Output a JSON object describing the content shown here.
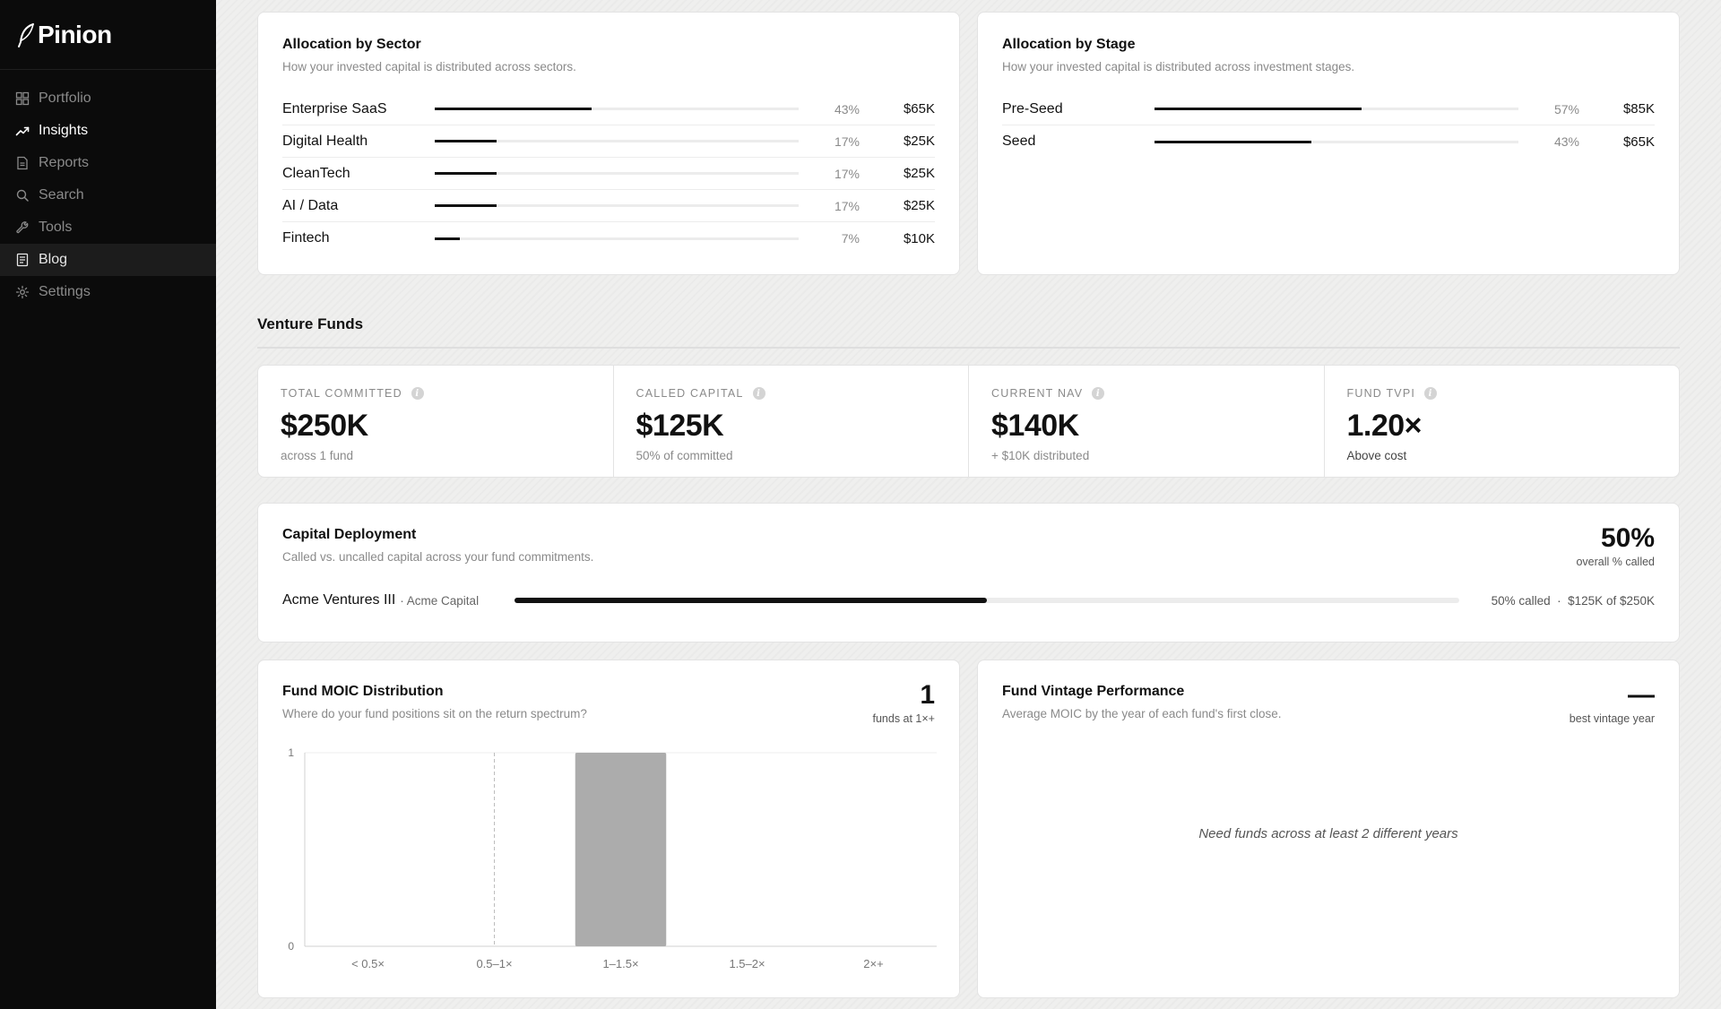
{
  "brand": {
    "name": "Pinion"
  },
  "nav": [
    {
      "label": "Portfolio",
      "icon": "grid-icon",
      "state": "normal"
    },
    {
      "label": "Insights",
      "icon": "trend-icon",
      "state": "active"
    },
    {
      "label": "Reports",
      "icon": "document-icon",
      "state": "normal"
    },
    {
      "label": "Search",
      "icon": "search-icon",
      "state": "normal"
    },
    {
      "label": "Tools",
      "icon": "wrench-icon",
      "state": "normal"
    },
    {
      "label": "Blog",
      "icon": "article-icon",
      "state": "hover"
    },
    {
      "label": "Settings",
      "icon": "gear-icon",
      "state": "normal"
    }
  ],
  "sector": {
    "title": "Allocation by Sector",
    "subtitle": "How your invested capital is distributed across sectors.",
    "rows": [
      {
        "label": "Enterprise SaaS",
        "pct": "43%",
        "value": 43,
        "amount": "$65K"
      },
      {
        "label": "Digital Health",
        "pct": "17%",
        "value": 17,
        "amount": "$25K"
      },
      {
        "label": "CleanTech",
        "pct": "17%",
        "value": 17,
        "amount": "$25K"
      },
      {
        "label": "AI / Data",
        "pct": "17%",
        "value": 17,
        "amount": "$25K"
      },
      {
        "label": "Fintech",
        "pct": "7%",
        "value": 7,
        "amount": "$10K"
      }
    ]
  },
  "stage": {
    "title": "Allocation by Stage",
    "subtitle": "How your invested capital is distributed across investment stages.",
    "rows": [
      {
        "label": "Pre-Seed",
        "pct": "57%",
        "value": 57,
        "amount": "$85K"
      },
      {
        "label": "Seed",
        "pct": "43%",
        "value": 43,
        "amount": "$65K"
      }
    ]
  },
  "venture": {
    "title": "Venture Funds",
    "kpis": [
      {
        "label": "TOTAL COMMITTED",
        "value": "$250K",
        "note": "across 1 fund"
      },
      {
        "label": "CALLED CAPITAL",
        "value": "$125K",
        "note": "50% of committed"
      },
      {
        "label": "CURRENT NAV",
        "value": "$140K",
        "note": "+ $10K distributed"
      },
      {
        "label": "FUND TVPI",
        "value": "1.20×",
        "note": "Above cost"
      }
    ]
  },
  "deployment": {
    "title": "Capital Deployment",
    "subtitle": "Called vs. uncalled capital across your fund commitments.",
    "overall_pct": "50%",
    "overall_label": "overall % called",
    "fund": {
      "name": "Acme Ventures III",
      "manager": "· Acme Capital",
      "called_fraction": 0.5,
      "meta": "50% called  ·  $125K of $250K"
    }
  },
  "moic": {
    "title": "Fund MOIC Distribution",
    "subtitle": "Where do your fund positions sit on the return spectrum?",
    "stat": "1",
    "stat_label": "funds at 1×+",
    "chart_data": {
      "type": "bar",
      "categories": [
        "< 0.5×",
        "0.5–1×",
        "1–1.5×",
        "1.5–2×",
        "2×+"
      ],
      "values": [
        0,
        0,
        1,
        0,
        0
      ],
      "ylim": [
        0,
        1
      ],
      "yticks": [
        "0",
        "1"
      ],
      "reference_line": "0.5–1×",
      "bar_color": "#acacac"
    }
  },
  "vintage": {
    "title": "Fund Vintage Performance",
    "subtitle": "Average MOIC by the year of each fund's first close.",
    "stat": "—",
    "stat_label": "best vintage year",
    "empty_message": "Need funds across at least 2 different years"
  }
}
